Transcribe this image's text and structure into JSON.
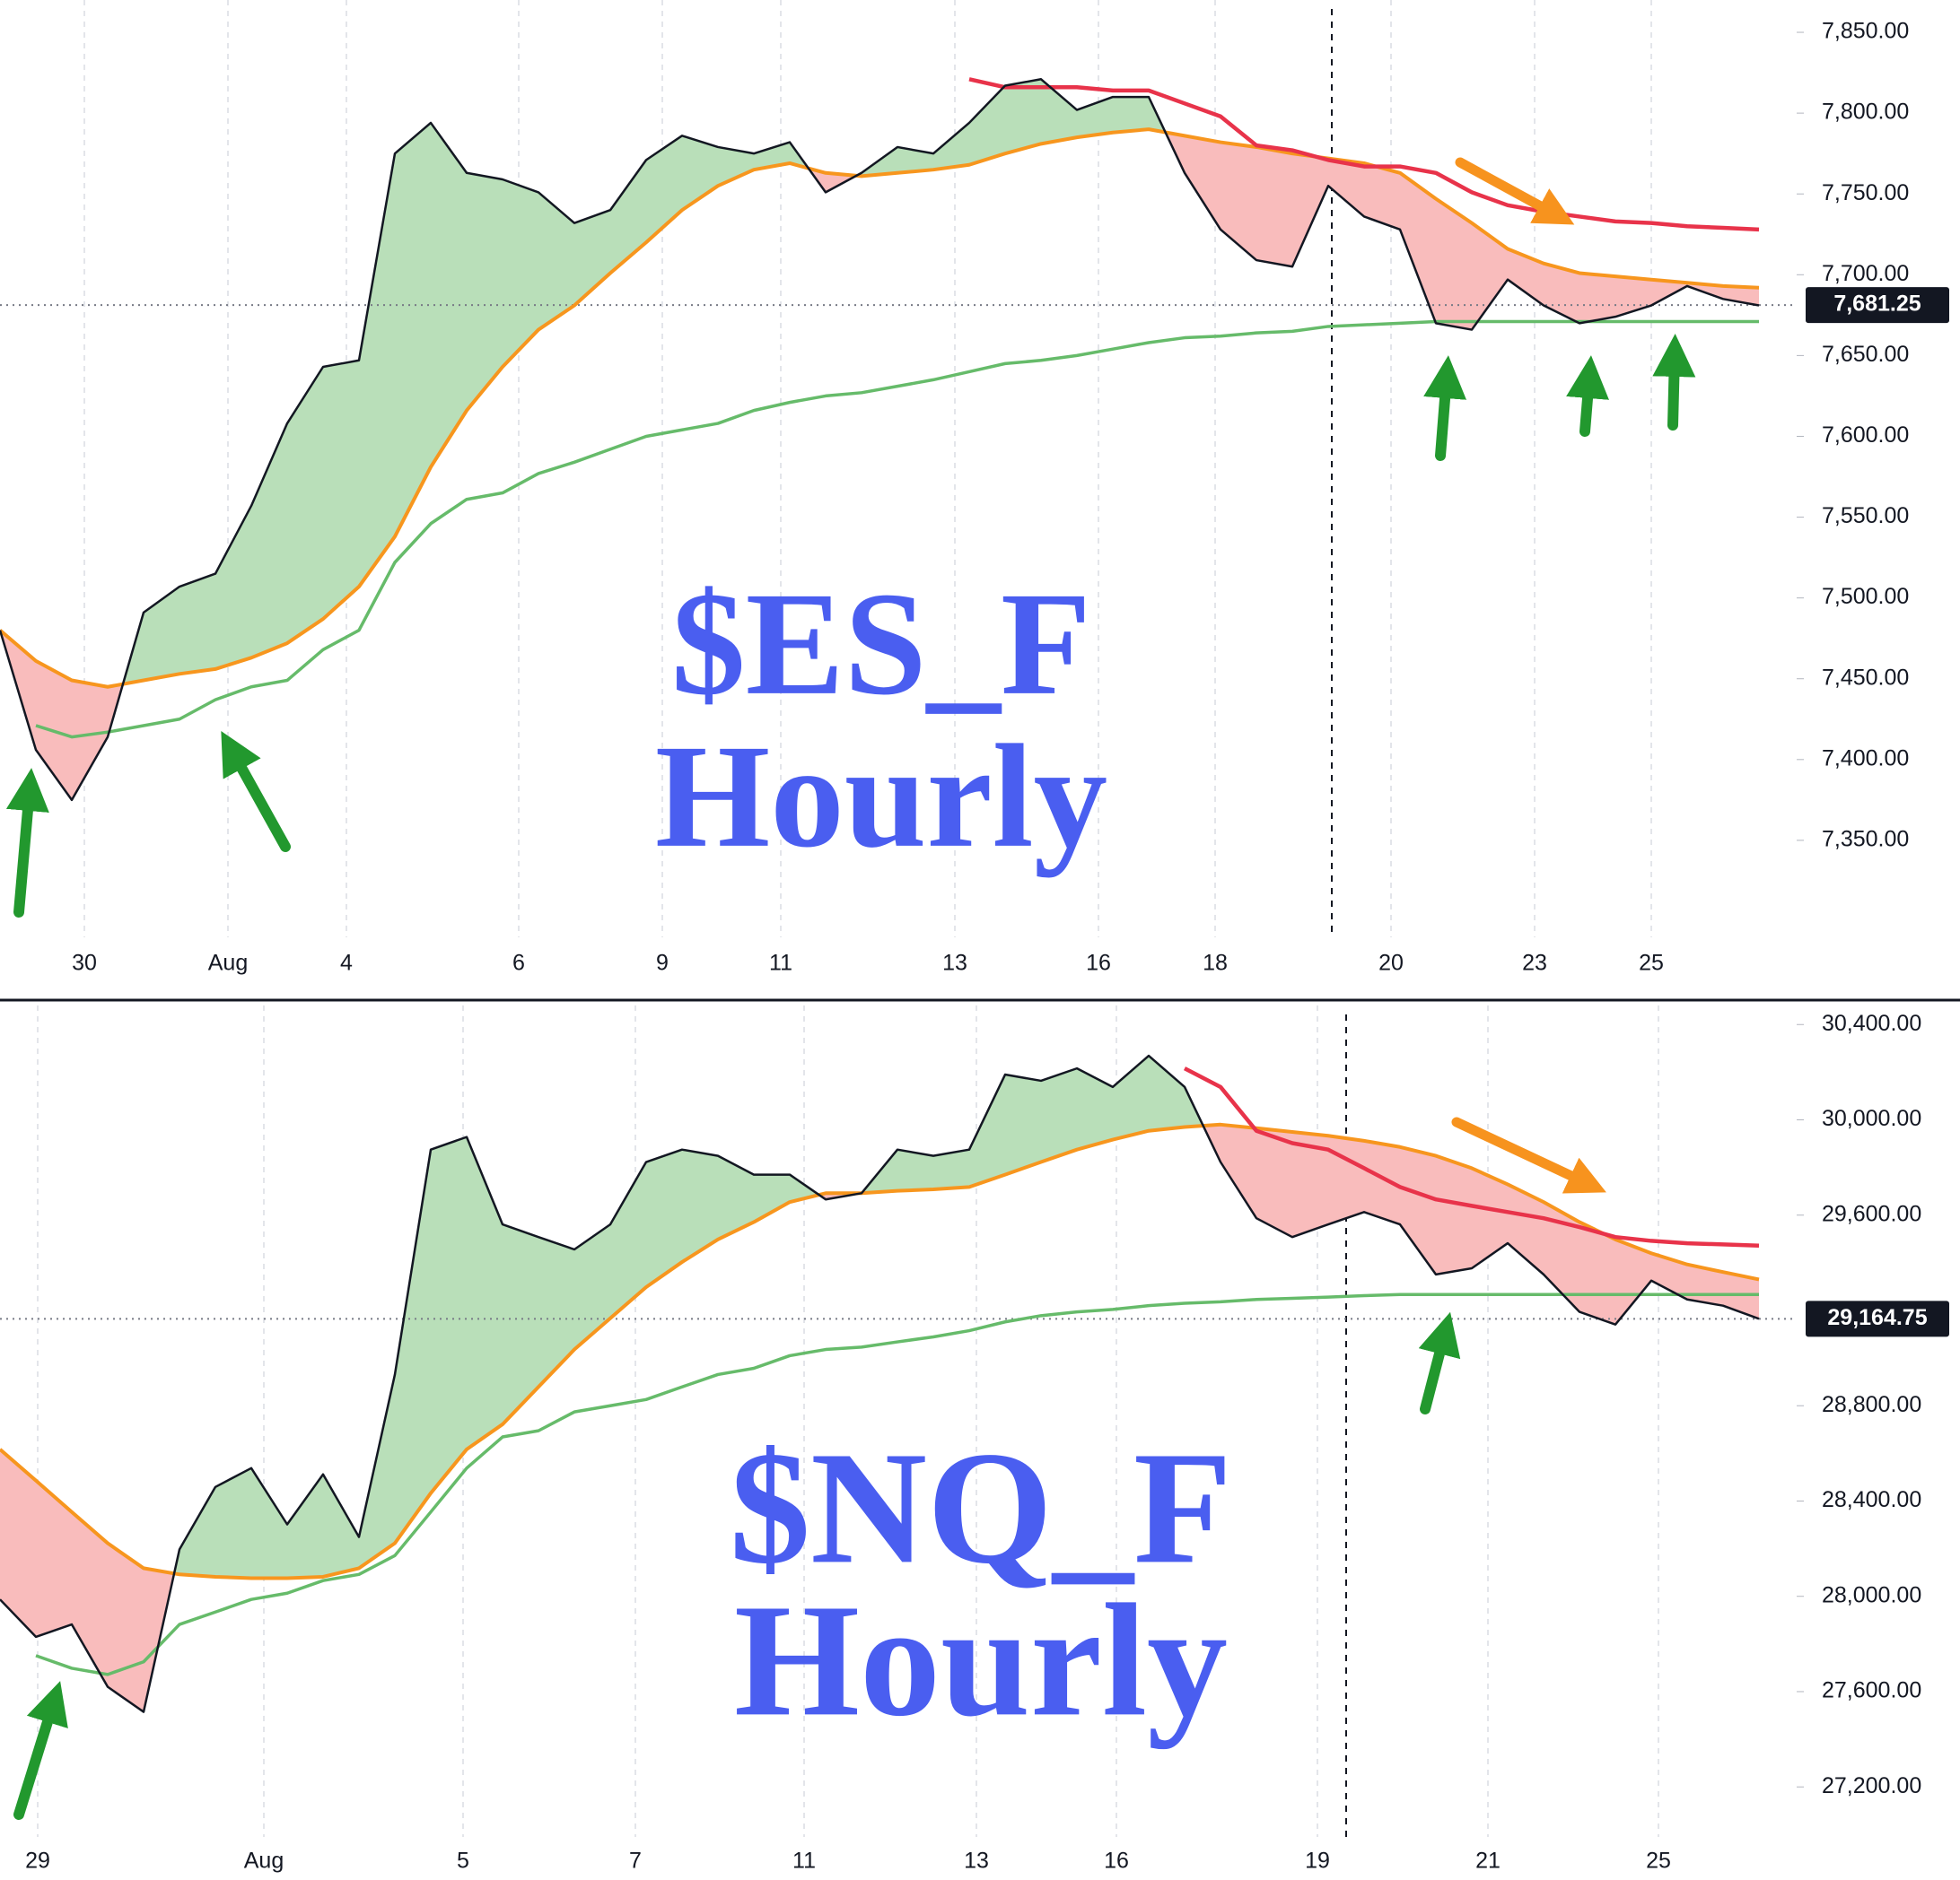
{
  "chart_data": [
    {
      "type": "line",
      "annotation": [
        "$ES_F",
        "Hourly"
      ],
      "x": [
        0,
        2,
        4,
        6,
        8,
        10,
        12,
        14,
        16,
        18,
        20,
        22,
        24,
        26,
        28,
        30,
        32,
        34,
        36,
        38,
        40,
        42,
        44,
        46,
        48,
        50,
        52,
        54,
        56,
        58,
        60,
        62,
        64,
        66,
        68,
        70,
        72,
        74,
        76,
        78,
        80,
        82,
        84,
        86,
        88,
        90,
        92,
        94,
        96,
        98
      ],
      "xlim": [
        0,
        100
      ],
      "xticks": [
        {
          "value": 4.7,
          "label": "30"
        },
        {
          "value": 12.7,
          "label": "Aug"
        },
        {
          "value": 19.3,
          "label": "4"
        },
        {
          "value": 28.9,
          "label": "6"
        },
        {
          "value": 36.9,
          "label": "9"
        },
        {
          "value": 43.5,
          "label": "11"
        },
        {
          "value": 53.2,
          "label": "13"
        },
        {
          "value": 61.2,
          "label": "16"
        },
        {
          "value": 67.7,
          "label": "18"
        },
        {
          "value": 77.5,
          "label": "20"
        },
        {
          "value": 85.5,
          "label": "23"
        },
        {
          "value": 92.0,
          "label": "25"
        }
      ],
      "ylim": [
        7290,
        7870
      ],
      "yticks": [
        {
          "value": 7850,
          "label": "7,850.00"
        },
        {
          "value": 7800,
          "label": "7,800.00"
        },
        {
          "value": 7750,
          "label": "7,750.00"
        },
        {
          "value": 7700,
          "label": "7,700.00"
        },
        {
          "value": 7650,
          "label": "7,650.00"
        },
        {
          "value": 7600,
          "label": "7,600.00"
        },
        {
          "value": 7550,
          "label": "7,550.00"
        },
        {
          "value": 7500,
          "label": "7,500.00"
        },
        {
          "value": 7450,
          "label": "7,450.00"
        },
        {
          "value": 7400,
          "label": "7,400.00"
        },
        {
          "value": 7350,
          "label": "7,350.00"
        }
      ],
      "grid": "x",
      "marker_x": 74.2,
      "last_price": {
        "value": 7681.25,
        "label": "7,681.25"
      },
      "fill_between": [
        0,
        1
      ],
      "fill_colors": {
        "above": "#b9dfb9",
        "below": "#f9bcbc"
      },
      "series": [
        {
          "color": "#131722",
          "width": 2.5,
          "values": [
            7480,
            7406,
            7375,
            7414,
            7491,
            7507,
            7515,
            7557,
            7608,
            7643,
            7647,
            7775,
            7794,
            7763,
            7759,
            7751,
            7732,
            7740,
            7771,
            7786,
            7779,
            7775,
            7782,
            7751,
            7763,
            7779,
            7775,
            7794,
            7817,
            7821,
            7802,
            7810,
            7810,
            7763,
            7728,
            7709,
            7705,
            7755,
            7736,
            7728,
            7670,
            7666,
            7697,
            7681,
            7670,
            7674,
            7681,
            7693,
            7685,
            7681
          ]
        },
        {
          "color": "#f7961e",
          "width": 4,
          "values": [
            7480,
            7461,
            7449,
            7445,
            7449,
            7453,
            7456,
            7463,
            7472,
            7487,
            7507,
            7538,
            7581,
            7616,
            7643,
            7666,
            7681,
            7701,
            7720,
            7740,
            7755,
            7765,
            7769,
            7763,
            7761,
            7763,
            7765,
            7768,
            7775,
            7781,
            7785,
            7788,
            7790,
            7786,
            7782,
            7779,
            7775,
            7772,
            7769,
            7763,
            7747,
            7732,
            7716,
            7707,
            7701,
            7699,
            7697,
            7695,
            7693,
            7692
          ]
        },
        {
          "color": "#66bb6a",
          "width": 3.5,
          "values": [
            null,
            7421,
            7414,
            7417,
            7421,
            7425,
            7437,
            7445,
            7449,
            7468,
            7480,
            7522,
            7546,
            7561,
            7565,
            7577,
            7584,
            7592,
            7600,
            7604,
            7608,
            7616,
            7621,
            7625,
            7627,
            7631,
            7635,
            7640,
            7645,
            7647,
            7650,
            7654,
            7658,
            7661,
            7662,
            7664,
            7665,
            7668,
            7669,
            7670,
            7671,
            7671,
            7671,
            7671,
            7671,
            7671,
            7671,
            7671,
            7671,
            7671
          ]
        },
        {
          "color": "#e8334a",
          "width": 4.5,
          "values": [
            null,
            null,
            null,
            null,
            null,
            null,
            null,
            null,
            null,
            null,
            null,
            null,
            null,
            null,
            null,
            null,
            null,
            null,
            null,
            null,
            null,
            null,
            null,
            null,
            null,
            null,
            null,
            7821,
            7816,
            7816,
            7816,
            7814,
            7814,
            7806,
            7798,
            7780,
            7777,
            7771,
            7767,
            7767,
            7763,
            7751,
            7743,
            7739,
            7736,
            7733,
            7732,
            7730,
            7729,
            7728
          ]
        }
      ]
    },
    {
      "type": "line",
      "annotation": [
        "$NQ_F",
        "Hourly"
      ],
      "x": [
        0,
        2,
        4,
        6,
        8,
        10,
        12,
        14,
        16,
        18,
        20,
        22,
        24,
        26,
        28,
        30,
        32,
        34,
        36,
        38,
        40,
        42,
        44,
        46,
        48,
        50,
        52,
        54,
        56,
        58,
        60,
        62,
        64,
        66,
        68,
        70,
        72,
        74,
        76,
        78,
        80,
        82,
        84,
        86,
        88,
        90,
        92,
        94,
        96,
        98
      ],
      "xlim": [
        0,
        100
      ],
      "xticks": [
        {
          "value": 2.1,
          "label": "29"
        },
        {
          "value": 14.7,
          "label": "Aug"
        },
        {
          "value": 25.8,
          "label": "5"
        },
        {
          "value": 35.4,
          "label": "7"
        },
        {
          "value": 44.8,
          "label": "11"
        },
        {
          "value": 54.4,
          "label": "13"
        },
        {
          "value": 62.2,
          "label": "16"
        },
        {
          "value": 73.4,
          "label": "19"
        },
        {
          "value": 82.9,
          "label": "21"
        },
        {
          "value": 92.4,
          "label": "25"
        }
      ],
      "ylim": [
        26990,
        30480
      ],
      "yticks": [
        {
          "value": 30400,
          "label": "30,400.00"
        },
        {
          "value": 30000,
          "label": "30,000.00"
        },
        {
          "value": 29600,
          "label": "29,600.00"
        },
        {
          "value": 28800,
          "label": "28,800.00"
        },
        {
          "value": 28400,
          "label": "28,400.00"
        },
        {
          "value": 28000,
          "label": "28,000.00"
        },
        {
          "value": 27600,
          "label": "27,600.00"
        },
        {
          "value": 27200,
          "label": "27,200.00"
        }
      ],
      "grid": "x",
      "marker_x": 75.0,
      "last_price": {
        "value": 29164.75,
        "label": "29,164.75"
      },
      "fill_between": [
        0,
        1
      ],
      "fill_colors": {
        "above": "#b9dfb9",
        "below": "#f9bcbc"
      },
      "series": [
        {
          "color": "#131722",
          "width": 2.5,
          "values": [
            27987,
            27830,
            27882,
            27620,
            27515,
            28197,
            28459,
            28538,
            28302,
            28512,
            28249,
            28931,
            29875,
            29928,
            29561,
            29508,
            29456,
            29561,
            29823,
            29875,
            29849,
            29770,
            29770,
            29666,
            29692,
            29875,
            29849,
            29875,
            30190,
            30164,
            30216,
            30138,
            30269,
            30138,
            29823,
            29587,
            29508,
            29561,
            29613,
            29561,
            29351,
            29377,
            29482,
            29351,
            29194,
            29141,
            29325,
            29246,
            29220,
            29165
          ]
        },
        {
          "color": "#f7961e",
          "width": 4,
          "values": [
            28617,
            28486,
            28354,
            28223,
            28118,
            28092,
            28082,
            28076,
            28076,
            28082,
            28118,
            28223,
            28433,
            28617,
            28722,
            28879,
            29036,
            29167,
            29298,
            29403,
            29498,
            29571,
            29655,
            29692,
            29692,
            29702,
            29708,
            29718,
            29770,
            29823,
            29875,
            29917,
            29954,
            29970,
            29980,
            29965,
            29949,
            29933,
            29912,
            29886,
            29849,
            29797,
            29729,
            29655,
            29571,
            29498,
            29440,
            29393,
            29361,
            29330
          ]
        },
        {
          "color": "#66bb6a",
          "width": 3.5,
          "values": [
            null,
            27751,
            27698,
            27672,
            27725,
            27882,
            27934,
            27987,
            28013,
            28066,
            28092,
            28171,
            28354,
            28538,
            28669,
            28695,
            28774,
            28800,
            28826,
            28879,
            28931,
            28957,
            29010,
            29036,
            29046,
            29068,
            29089,
            29115,
            29152,
            29178,
            29194,
            29204,
            29220,
            29230,
            29236,
            29246,
            29251,
            29256,
            29262,
            29267,
            29267,
            29267,
            29267,
            29267,
            29267,
            29267,
            29267,
            29267,
            29267,
            29267
          ]
        },
        {
          "color": "#e8334a",
          "width": 4.5,
          "values": [
            null,
            null,
            null,
            null,
            null,
            null,
            null,
            null,
            null,
            null,
            null,
            null,
            null,
            null,
            null,
            null,
            null,
            null,
            null,
            null,
            null,
            null,
            null,
            null,
            null,
            null,
            null,
            null,
            null,
            null,
            null,
            null,
            null,
            30216,
            30138,
            29954,
            29902,
            29875,
            29797,
            29718,
            29666,
            29639,
            29613,
            29587,
            29550,
            29508,
            29492,
            29482,
            29477,
            29472
          ]
        }
      ]
    }
  ]
}
